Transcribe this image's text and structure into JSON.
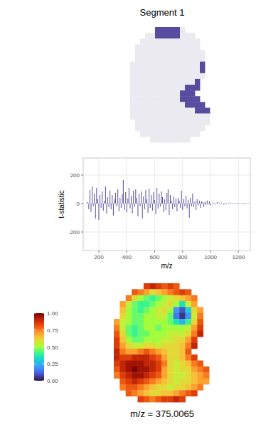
{
  "chart_data": [
    {
      "type": "segmentation",
      "title": "Segment 1",
      "colors": [
        "#ebeaf1",
        "#574c9f"
      ],
      "cells": [
        [
          null,
          null,
          null,
          null,
          null,
          1,
          1,
          1,
          1,
          1,
          0,
          null,
          null,
          null,
          null,
          null
        ],
        [
          null,
          null,
          null,
          0,
          0,
          1,
          1,
          1,
          1,
          1,
          0,
          0,
          0,
          null,
          null,
          null
        ],
        [
          null,
          null,
          0,
          0,
          0,
          0,
          0,
          0,
          0,
          0,
          0,
          0,
          0,
          0,
          null,
          null
        ],
        [
          null,
          0,
          0,
          0,
          0,
          0,
          0,
          0,
          0,
          0,
          0,
          0,
          0,
          0,
          null,
          null
        ],
        [
          null,
          0,
          0,
          0,
          0,
          0,
          0,
          0,
          0,
          0,
          0,
          0,
          0,
          0,
          0,
          null
        ],
        [
          null,
          0,
          0,
          0,
          0,
          0,
          0,
          0,
          0,
          0,
          0,
          0,
          0,
          0,
          0,
          null
        ],
        [
          0,
          0,
          0,
          0,
          0,
          0,
          0,
          0,
          0,
          0,
          0,
          0,
          0,
          0,
          1,
          null
        ],
        [
          0,
          0,
          0,
          0,
          0,
          0,
          0,
          0,
          0,
          0,
          0,
          0,
          0,
          0,
          1,
          null
        ],
        [
          0,
          0,
          0,
          0,
          0,
          0,
          0,
          0,
          0,
          0,
          0,
          0,
          0,
          0,
          0,
          null
        ],
        [
          0,
          0,
          0,
          0,
          0,
          0,
          0,
          0,
          0,
          0,
          0,
          0,
          0,
          1,
          null,
          null
        ],
        [
          0,
          0,
          0,
          0,
          0,
          0,
          0,
          0,
          0,
          0,
          0,
          1,
          1,
          1,
          null,
          null
        ],
        [
          0,
          0,
          0,
          0,
          0,
          0,
          0,
          0,
          0,
          0,
          1,
          1,
          1,
          null,
          null,
          null
        ],
        [
          0,
          0,
          0,
          0,
          0,
          0,
          0,
          0,
          0,
          0,
          1,
          1,
          1,
          1,
          null,
          null
        ],
        [
          0,
          0,
          0,
          0,
          0,
          0,
          0,
          0,
          0,
          0,
          0,
          1,
          1,
          1,
          1,
          null
        ],
        [
          0,
          0,
          0,
          0,
          0,
          0,
          0,
          0,
          0,
          0,
          0,
          0,
          0,
          1,
          1,
          1
        ],
        [
          0,
          0,
          0,
          0,
          0,
          0,
          0,
          0,
          0,
          0,
          0,
          0,
          0,
          0,
          0,
          0
        ],
        [
          null,
          0,
          0,
          0,
          0,
          0,
          0,
          0,
          0,
          0,
          0,
          0,
          0,
          0,
          0,
          0
        ],
        [
          null,
          0,
          0,
          0,
          0,
          0,
          0,
          0,
          0,
          0,
          0,
          0,
          0,
          0,
          0,
          null
        ],
        [
          null,
          null,
          0,
          0,
          0,
          0,
          0,
          0,
          0,
          0,
          0,
          0,
          0,
          0,
          null,
          null
        ],
        [
          null,
          null,
          null,
          null,
          0,
          0,
          0,
          0,
          0,
          0,
          0,
          0,
          null,
          null,
          null,
          null
        ]
      ]
    },
    {
      "type": "spectrum",
      "xlabel": "m/z",
      "ylabel": "t-statistic",
      "color": "#574c9f",
      "grid": true,
      "xlim": [
        88,
        1285
      ],
      "ylim": [
        -330,
        320
      ],
      "xticks": [
        200,
        400,
        600,
        800,
        1000,
        1200
      ],
      "yticks": [
        -200,
        0,
        200
      ],
      "x": [
        120,
        128,
        136,
        144,
        152,
        160,
        168,
        176,
        184,
        192,
        200,
        208,
        216,
        224,
        232,
        240,
        248,
        256,
        264,
        272,
        280,
        288,
        296,
        304,
        312,
        320,
        328,
        336,
        344,
        352,
        360,
        368,
        375,
        384,
        392,
        400,
        408,
        416,
        424,
        432,
        440,
        448,
        456,
        464,
        472,
        480,
        488,
        496,
        504,
        512,
        520,
        528,
        536,
        544,
        552,
        560,
        568,
        576,
        584,
        592,
        600,
        608,
        616,
        624,
        632,
        640,
        648,
        656,
        664,
        672,
        680,
        688,
        696,
        704,
        712,
        720,
        728,
        736,
        744,
        752,
        760,
        768,
        776,
        784,
        792,
        800,
        808,
        816,
        824,
        832,
        840,
        848,
        856,
        864,
        872,
        880,
        888,
        896,
        904,
        912,
        920,
        928,
        936,
        944,
        952,
        960,
        968,
        976,
        984,
        992,
        1000,
        1016,
        1032,
        1048,
        1064,
        1080,
        1096,
        1112,
        1128,
        1144,
        1160,
        1176,
        1192,
        1208,
        1224,
        1240,
        1256,
        1272,
        1288
      ],
      "values": [
        10,
        -40,
        95,
        -60,
        120,
        -20,
        70,
        -105,
        110,
        30,
        -115,
        60,
        -30,
        85,
        -50,
        20,
        120,
        -70,
        45,
        -25,
        90,
        -40,
        60,
        -85,
        30,
        75,
        -20,
        100,
        -55,
        40,
        -30,
        65,
        165,
        -45,
        80,
        -60,
        35,
        110,
        -35,
        55,
        -70,
        90,
        -25,
        100,
        40,
        -90,
        70,
        -20,
        85,
        -105,
        50,
        -40,
        95,
        30,
        -65,
        105,
        -30,
        60,
        -50,
        80,
        25,
        -75,
        110,
        -35,
        70,
        -20,
        85,
        45,
        -60,
        30,
        -45,
        75,
        100,
        -80,
        60,
        20,
        -40,
        50,
        -25,
        35,
        -55,
        40,
        20,
        -30,
        90,
        -45,
        30,
        -20,
        55,
        -35,
        25,
        -100,
        40,
        -20,
        70,
        -25,
        15,
        -45,
        30,
        -15,
        20,
        -30,
        15,
        10,
        -25,
        12,
        -10,
        20,
        -8,
        15,
        -12,
        8,
        -6,
        10,
        -5,
        6,
        -8,
        5,
        -4,
        7,
        -5,
        4,
        -6,
        3,
        -4,
        5,
        -3,
        2,
        -2
      ]
    },
    {
      "type": "heatmap",
      "title": "m/z = 375.0065",
      "colorbar": {
        "range": [
          0,
          1
        ],
        "ticks": [
          {
            "value": 0,
            "label": "0.00"
          },
          0.25,
          {
            "value": 0.5,
            "label": "0.50"
          },
          0.75,
          {
            "value": 1,
            "label": "1.00"
          }
        ]
      },
      "cells": [
        [
          null,
          null,
          null,
          null,
          null,
          0.85,
          0.9,
          0.85,
          0.8,
          0.85,
          0.8,
          null,
          null,
          null,
          null,
          null
        ],
        [
          null,
          null,
          null,
          0.8,
          0.75,
          0.7,
          0.6,
          0.65,
          0.7,
          0.75,
          0.8,
          0.85,
          0.8,
          null,
          null,
          null
        ],
        [
          null,
          null,
          0.75,
          0.6,
          0.5,
          0.45,
          0.4,
          0.45,
          0.5,
          0.55,
          0.6,
          0.65,
          0.7,
          0.75,
          null,
          null
        ],
        [
          null,
          0.7,
          0.55,
          0.45,
          0.4,
          0.4,
          0.45,
          0.5,
          0.55,
          0.6,
          0.5,
          0.35,
          0.55,
          0.7,
          null,
          null
        ],
        [
          null,
          0.65,
          0.5,
          0.45,
          0.4,
          0.45,
          0.5,
          0.55,
          0.6,
          0.5,
          0.2,
          0.1,
          0.3,
          0.6,
          0.7,
          null
        ],
        [
          null,
          0.6,
          0.5,
          0.45,
          0.45,
          0.5,
          0.5,
          0.55,
          0.55,
          0.45,
          0.15,
          0.05,
          0.2,
          0.55,
          0.75,
          null
        ],
        [
          0.7,
          0.55,
          0.5,
          0.45,
          0.45,
          0.5,
          0.5,
          0.5,
          0.5,
          0.45,
          0.35,
          0.25,
          0.4,
          0.6,
          0.8,
          null
        ],
        [
          0.75,
          0.55,
          0.45,
          0.4,
          0.45,
          0.5,
          0.5,
          0.45,
          0.5,
          0.5,
          0.5,
          0.5,
          0.55,
          0.7,
          0.85,
          null
        ],
        [
          0.8,
          0.6,
          0.45,
          0.4,
          0.45,
          0.45,
          0.5,
          0.5,
          0.5,
          0.55,
          0.55,
          0.55,
          0.6,
          0.75,
          0.9,
          null
        ],
        [
          0.85,
          0.65,
          0.5,
          0.45,
          0.45,
          0.5,
          0.5,
          0.5,
          0.55,
          0.55,
          0.6,
          0.6,
          0.7,
          0.85,
          null,
          null
        ],
        [
          0.85,
          0.7,
          0.6,
          0.55,
          0.55,
          0.6,
          0.6,
          0.55,
          0.6,
          0.6,
          0.6,
          0.65,
          0.75,
          0.9,
          null,
          null
        ],
        [
          0.9,
          0.75,
          0.7,
          0.7,
          0.75,
          0.8,
          0.75,
          0.7,
          0.65,
          0.6,
          0.6,
          0.65,
          0.8,
          null,
          null,
          null
        ],
        [
          0.9,
          0.85,
          0.85,
          0.9,
          0.9,
          0.9,
          0.85,
          0.8,
          0.7,
          0.6,
          0.6,
          0.65,
          0.75,
          0.85,
          null,
          null
        ],
        [
          0.85,
          0.9,
          0.95,
          0.95,
          0.95,
          0.9,
          0.9,
          0.85,
          0.75,
          0.6,
          0.55,
          0.6,
          0.65,
          0.75,
          0.8,
          null
        ],
        [
          0.8,
          0.9,
          0.95,
          1.0,
          0.95,
          0.95,
          0.9,
          0.85,
          0.7,
          0.6,
          0.55,
          0.6,
          0.6,
          0.7,
          0.75,
          0.8
        ],
        [
          0.75,
          0.85,
          0.9,
          0.95,
          0.95,
          0.9,
          0.85,
          0.8,
          0.7,
          0.6,
          0.55,
          0.55,
          0.6,
          0.65,
          0.7,
          0.75
        ],
        [
          null,
          0.8,
          0.85,
          0.9,
          0.85,
          0.8,
          0.75,
          0.7,
          0.65,
          0.6,
          0.55,
          0.6,
          0.6,
          0.65,
          0.7,
          0.7
        ],
        [
          null,
          0.75,
          0.8,
          0.8,
          0.75,
          0.7,
          0.65,
          0.6,
          0.6,
          0.55,
          0.6,
          0.6,
          0.65,
          0.7,
          0.75,
          null
        ],
        [
          null,
          null,
          0.8,
          0.75,
          0.7,
          0.65,
          0.6,
          0.6,
          0.65,
          0.65,
          0.7,
          0.75,
          0.8,
          0.85,
          null,
          null
        ],
        [
          null,
          null,
          null,
          null,
          0.85,
          0.8,
          0.75,
          0.8,
          0.85,
          0.85,
          0.9,
          0.85,
          null,
          null,
          null,
          null
        ]
      ]
    }
  ]
}
